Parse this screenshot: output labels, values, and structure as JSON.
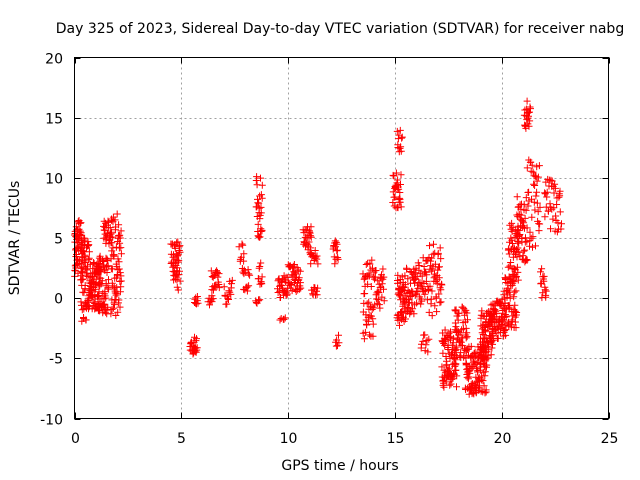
{
  "chart_data": {
    "type": "scatter",
    "title": "Day 325 of 2023, Sidereal Day-to-day VTEC variation (SDTVAR) for receiver nabg",
    "xlabel": "GPS time / hours",
    "ylabel": "SDTVAR / TECUs",
    "xlim": [
      0,
      25
    ],
    "ylim": [
      -10,
      20
    ],
    "x_ticks": [
      "0",
      "5",
      "10",
      "15",
      "20",
      "25"
    ],
    "y_ticks": [
      "-10",
      "-5",
      "0",
      "5",
      "10",
      "15",
      "20"
    ],
    "grid": true,
    "marker": "+",
    "color": "#ff0000",
    "clusters": [
      {
        "x": [
          0.0,
          0.35
        ],
        "y": [
          1.5,
          6.5
        ],
        "n": 60
      },
      {
        "x": [
          0.3,
          0.7
        ],
        "y": [
          -2.0,
          5.0
        ],
        "n": 70
      },
      {
        "x": [
          0.7,
          1.2
        ],
        "y": [
          -1.0,
          3.0
        ],
        "n": 70
      },
      {
        "x": [
          1.1,
          1.6
        ],
        "y": [
          -1.5,
          3.5
        ],
        "n": 60
      },
      {
        "x": [
          1.35,
          1.75
        ],
        "y": [
          4.5,
          6.5
        ],
        "n": 30
      },
      {
        "x": [
          1.7,
          2.2
        ],
        "y": [
          -1.5,
          7.0
        ],
        "n": 70
      },
      {
        "x": [
          4.5,
          4.95
        ],
        "y": [
          2.5,
          4.7
        ],
        "n": 30
      },
      {
        "x": [
          4.6,
          4.95
        ],
        "y": [
          0.5,
          2.5
        ],
        "n": 15
      },
      {
        "x": [
          5.4,
          5.75
        ],
        "y": [
          -4.7,
          -3.2
        ],
        "n": 25
      },
      {
        "x": [
          5.6,
          5.8
        ],
        "y": [
          -0.5,
          0.3
        ],
        "n": 8
      },
      {
        "x": [
          6.25,
          6.5
        ],
        "y": [
          -0.6,
          0.3
        ],
        "n": 8
      },
      {
        "x": [
          6.4,
          6.8
        ],
        "y": [
          0.5,
          2.4
        ],
        "n": 20
      },
      {
        "x": [
          7.0,
          7.4
        ],
        "y": [
          -0.5,
          1.5
        ],
        "n": 15
      },
      {
        "x": [
          7.7,
          7.95
        ],
        "y": [
          3.0,
          4.5
        ],
        "n": 8
      },
      {
        "x": [
          7.85,
          8.2
        ],
        "y": [
          0.5,
          2.5
        ],
        "n": 15
      },
      {
        "x": [
          8.45,
          8.7
        ],
        "y": [
          -0.5,
          0.0
        ],
        "n": 6
      },
      {
        "x": [
          8.5,
          8.8
        ],
        "y": [
          5.0,
          10.3
        ],
        "n": 30
      },
      {
        "x": [
          8.6,
          8.8
        ],
        "y": [
          1.0,
          3.0
        ],
        "n": 10
      },
      {
        "x": [
          9.5,
          10.0
        ],
        "y": [
          0.0,
          2.0
        ],
        "n": 30
      },
      {
        "x": [
          9.6,
          9.9
        ],
        "y": [
          -2.0,
          -1.5
        ],
        "n": 5
      },
      {
        "x": [
          10.0,
          10.6
        ],
        "y": [
          0.5,
          2.8
        ],
        "n": 40
      },
      {
        "x": [
          10.7,
          11.1
        ],
        "y": [
          4.0,
          6.0
        ],
        "n": 25
      },
      {
        "x": [
          11.0,
          11.4
        ],
        "y": [
          2.5,
          4.0
        ],
        "n": 15
      },
      {
        "x": [
          11.1,
          11.4
        ],
        "y": [
          -0.5,
          1.0
        ],
        "n": 10
      },
      {
        "x": [
          12.1,
          12.35
        ],
        "y": [
          2.5,
          5.0
        ],
        "n": 15
      },
      {
        "x": [
          12.2,
          12.4
        ],
        "y": [
          -4.0,
          -3.0
        ],
        "n": 6
      },
      {
        "x": [
          13.5,
          14.0
        ],
        "y": [
          -3.5,
          3.5
        ],
        "n": 45
      },
      {
        "x": [
          14.0,
          14.5
        ],
        "y": [
          -1.0,
          2.5
        ],
        "n": 30
      },
      {
        "x": [
          14.9,
          15.3
        ],
        "y": [
          7.5,
          10.5
        ],
        "n": 30
      },
      {
        "x": [
          15.1,
          15.35
        ],
        "y": [
          12.0,
          14.4
        ],
        "n": 12
      },
      {
        "x": [
          15.1,
          15.5
        ],
        "y": [
          -2.5,
          2.0
        ],
        "n": 50
      },
      {
        "x": [
          15.5,
          16.0
        ],
        "y": [
          -1.5,
          2.5
        ],
        "n": 45
      },
      {
        "x": [
          16.0,
          16.6
        ],
        "y": [
          -0.5,
          3.5
        ],
        "n": 40
      },
      {
        "x": [
          16.2,
          16.6
        ],
        "y": [
          -4.5,
          -3.0
        ],
        "n": 10
      },
      {
        "x": [
          16.6,
          17.2
        ],
        "y": [
          -1.5,
          4.5
        ],
        "n": 45
      },
      {
        "x": [
          17.2,
          17.9
        ],
        "y": [
          -7.5,
          -2.5
        ],
        "n": 90
      },
      {
        "x": [
          17.8,
          18.4
        ],
        "y": [
          -5.0,
          -0.5
        ],
        "n": 50
      },
      {
        "x": [
          18.3,
          19.3
        ],
        "y": [
          -8.0,
          -4.0
        ],
        "n": 120
      },
      {
        "x": [
          19.0,
          19.6
        ],
        "y": [
          -5.0,
          -1.0
        ],
        "n": 80
      },
      {
        "x": [
          19.5,
          20.2
        ],
        "y": [
          -3.5,
          0.0
        ],
        "n": 70
      },
      {
        "x": [
          20.1,
          20.7
        ],
        "y": [
          -2.5,
          2.0
        ],
        "n": 60
      },
      {
        "x": [
          20.3,
          20.8
        ],
        "y": [
          1.0,
          6.5
        ],
        "n": 50
      },
      {
        "x": [
          20.7,
          21.2
        ],
        "y": [
          3.0,
          8.5
        ],
        "n": 50
      },
      {
        "x": [
          21.05,
          21.35
        ],
        "y": [
          14.0,
          16.5
        ],
        "n": 20
      },
      {
        "x": [
          21.2,
          21.8
        ],
        "y": [
          4.0,
          11.5
        ],
        "n": 40
      },
      {
        "x": [
          21.8,
          22.1
        ],
        "y": [
          0.0,
          2.5
        ],
        "n": 15
      },
      {
        "x": [
          22.0,
          22.8
        ],
        "y": [
          5.5,
          10.0
        ],
        "n": 40
      }
    ]
  }
}
